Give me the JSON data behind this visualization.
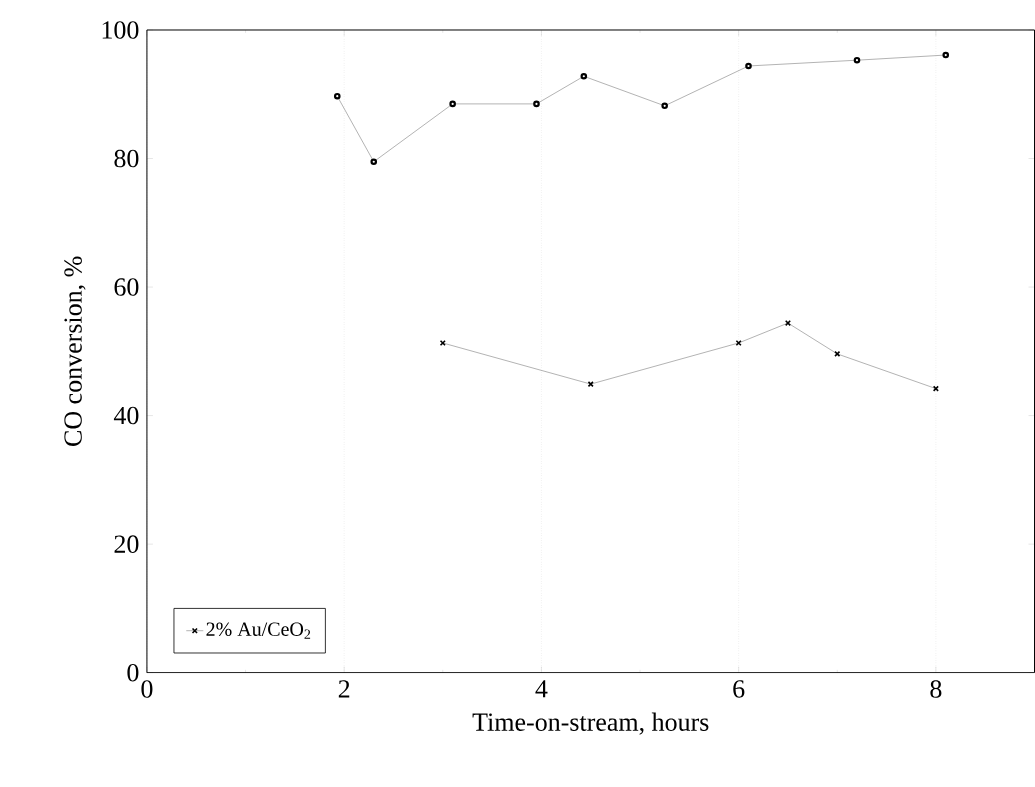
{
  "chart_data": {
    "type": "line",
    "xlabel": "Time-on-stream, hours",
    "ylabel": "CO conversion, %",
    "xlim": [
      0,
      9
    ],
    "ylim": [
      0,
      100
    ],
    "xticks": [
      0,
      2,
      4,
      6,
      8
    ],
    "yticks": [
      0,
      20,
      40,
      60,
      80,
      100
    ],
    "grid": "x",
    "legend": "bottom left",
    "line_style": "solid",
    "series": [
      {
        "color": "#000000",
        "marker": "circle",
        "x": [
          1.93,
          2.3,
          3.1,
          3.95,
          4.43,
          5.25,
          6.1,
          7.2,
          8.1
        ],
        "values": [
          89.7,
          79.5,
          88.5,
          88.5,
          92.8,
          88.2,
          94.4,
          95.3,
          96.1
        ]
      },
      {
        "name": "2% Au/CeO$_{2}$",
        "color": "#000000",
        "marker": "cross",
        "x": [
          3.0,
          4.5,
          6.0,
          6.5,
          7.0,
          8.0
        ],
        "values": [
          51.3,
          44.9,
          51.3,
          54.4,
          49.6,
          44.2
        ]
      }
    ]
  }
}
